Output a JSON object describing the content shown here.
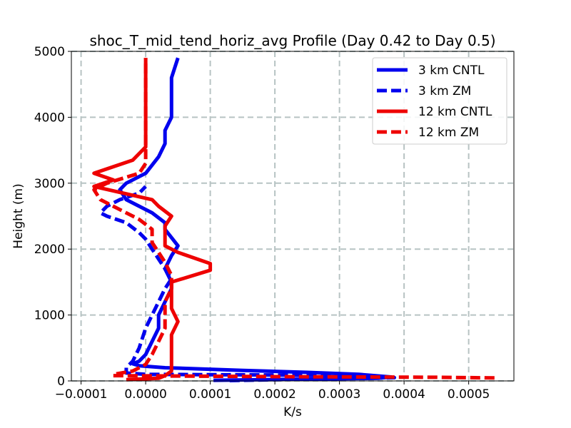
{
  "chart_data": {
    "type": "line",
    "title": "shoc_T_mid_tend_horiz_avg Profile (Day 0.42 to Day 0.5)",
    "xlabel": "K/s",
    "ylabel": "Height (m)",
    "xlim": [
      -0.000115,
      0.00057
    ],
    "ylim": [
      0,
      5000
    ],
    "x_ticks": [
      -0.0001,
      0.0,
      0.0001,
      0.0002,
      0.0003,
      0.0004,
      0.0005
    ],
    "x_tick_labels": [
      "−0.0001",
      "0.0000",
      "0.0001",
      "0.0002",
      "0.0003",
      "0.0004",
      "0.0005"
    ],
    "y_ticks": [
      0,
      1000,
      2000,
      3000,
      4000,
      5000
    ],
    "y_tick_labels": [
      "0",
      "1000",
      "2000",
      "3000",
      "4000",
      "5000"
    ],
    "grid": true,
    "legend_position": "top-right",
    "series": [
      {
        "name": "3 km CNTL",
        "color": "#0000ee",
        "dash": "solid",
        "points": [
          [
            0.000105,
            10
          ],
          [
            0.00036,
            40
          ],
          [
            0.00038,
            60
          ],
          [
            0.00033,
            100
          ],
          [
            0.00025,
            130
          ],
          [
            0.00015,
            160
          ],
          [
            3e-05,
            200
          ],
          [
            -1e-05,
            230
          ],
          [
            -2e-05,
            260
          ],
          [
            -1e-05,
            300
          ],
          [
            0.0,
            400
          ],
          [
            1e-05,
            600
          ],
          [
            2e-05,
            800
          ],
          [
            2e-05,
            1000
          ],
          [
            3e-05,
            1200
          ],
          [
            4e-05,
            1400
          ],
          [
            4e-05,
            1500
          ],
          [
            3e-05,
            1700
          ],
          [
            4e-05,
            1900
          ],
          [
            5e-05,
            2050
          ],
          [
            3e-05,
            2300
          ],
          [
            3e-05,
            2400
          ],
          [
            1e-05,
            2550
          ],
          [
            -1e-05,
            2650
          ],
          [
            -3e-05,
            2750
          ],
          [
            -4e-05,
            2900
          ],
          [
            -3e-05,
            3000
          ],
          [
            0.0,
            3150
          ],
          [
            2e-05,
            3400
          ],
          [
            3e-05,
            3600
          ],
          [
            3e-05,
            3800
          ],
          [
            4e-05,
            4000
          ],
          [
            4e-05,
            4300
          ],
          [
            4e-05,
            4600
          ],
          [
            5e-05,
            4900
          ]
        ]
      },
      {
        "name": "3 km ZM",
        "color": "#0000ee",
        "dash": "dashed",
        "points": [
          [
            0.00013,
            5
          ],
          [
            0.000385,
            50
          ],
          [
            0.00032,
            75
          ],
          [
            0.0002,
            90
          ],
          [
            0.0,
            100
          ],
          [
            -3e-05,
            120
          ],
          [
            -3e-05,
            200
          ],
          [
            -2e-05,
            300
          ],
          [
            -1e-05,
            500
          ],
          [
            0.0,
            800
          ],
          [
            1e-05,
            1000
          ],
          [
            2e-05,
            1200
          ],
          [
            3e-05,
            1400
          ],
          [
            4e-05,
            1550
          ],
          [
            3e-05,
            1700
          ],
          [
            2e-05,
            1850
          ],
          [
            1e-05,
            2000
          ],
          [
            0.0,
            2150
          ],
          [
            -1e-05,
            2250
          ],
          [
            -3e-05,
            2400
          ],
          [
            -6e-05,
            2500
          ],
          [
            -7e-05,
            2550
          ],
          [
            -6e-05,
            2650
          ],
          [
            -4e-05,
            2750
          ],
          [
            -1e-05,
            2850
          ],
          [
            0.0,
            2950
          ]
        ]
      },
      {
        "name": "12 km CNTL",
        "color": "#ee0000",
        "dash": "solid",
        "points": [
          [
            -3e-05,
            20
          ],
          [
            2e-05,
            40
          ],
          [
            3e-05,
            80
          ],
          [
            4e-05,
            150
          ],
          [
            4e-05,
            400
          ],
          [
            4e-05,
            700
          ],
          [
            5e-05,
            900
          ],
          [
            4e-05,
            1100
          ],
          [
            4e-05,
            1300
          ],
          [
            4e-05,
            1500
          ],
          [
            0.0001,
            1680
          ],
          [
            0.0001,
            1780
          ],
          [
            5e-05,
            1950
          ],
          [
            3e-05,
            2050
          ],
          [
            3e-05,
            2200
          ],
          [
            3e-05,
            2350
          ],
          [
            4e-05,
            2500
          ],
          [
            2e-05,
            2650
          ],
          [
            1e-05,
            2750
          ],
          [
            -8e-05,
            2950
          ],
          [
            -5e-05,
            3050
          ],
          [
            -8e-05,
            3150
          ],
          [
            -2e-05,
            3350
          ],
          [
            0.0,
            3550
          ],
          [
            0.0,
            3800
          ],
          [
            0.0,
            4200
          ],
          [
            0.0,
            4600
          ],
          [
            0.0,
            4900
          ]
        ]
      },
      {
        "name": "12 km ZM",
        "color": "#ee0000",
        "dash": "dashed",
        "points": [
          [
            0.00054,
            45
          ],
          [
            0.00045,
            55
          ],
          [
            0.0002,
            65
          ],
          [
            -5e-05,
            80
          ],
          [
            -5e-05,
            100
          ],
          [
            -2e-05,
            150
          ],
          [
            0.0,
            250
          ],
          [
            1e-05,
            400
          ],
          [
            2e-05,
            600
          ],
          [
            3e-05,
            800
          ],
          [
            3e-05,
            1000
          ],
          [
            3e-05,
            1200
          ],
          [
            4e-05,
            1400
          ],
          [
            4e-05,
            1600
          ],
          [
            3e-05,
            1800
          ],
          [
            2e-05,
            1950
          ],
          [
            1e-05,
            2100
          ],
          [
            1e-05,
            2300
          ],
          [
            -1e-05,
            2450
          ],
          [
            -4e-05,
            2600
          ],
          [
            -7e-05,
            2750
          ],
          [
            -8e-05,
            2900
          ],
          [
            -6e-05,
            3000
          ],
          [
            -1e-05,
            3150
          ],
          [
            0.0,
            3300
          ],
          [
            0.0,
            3550
          ],
          [
            0.0,
            3900
          ],
          [
            0.0,
            4300
          ],
          [
            0.0,
            4600
          ],
          [
            0.0,
            4900
          ]
        ]
      }
    ]
  }
}
